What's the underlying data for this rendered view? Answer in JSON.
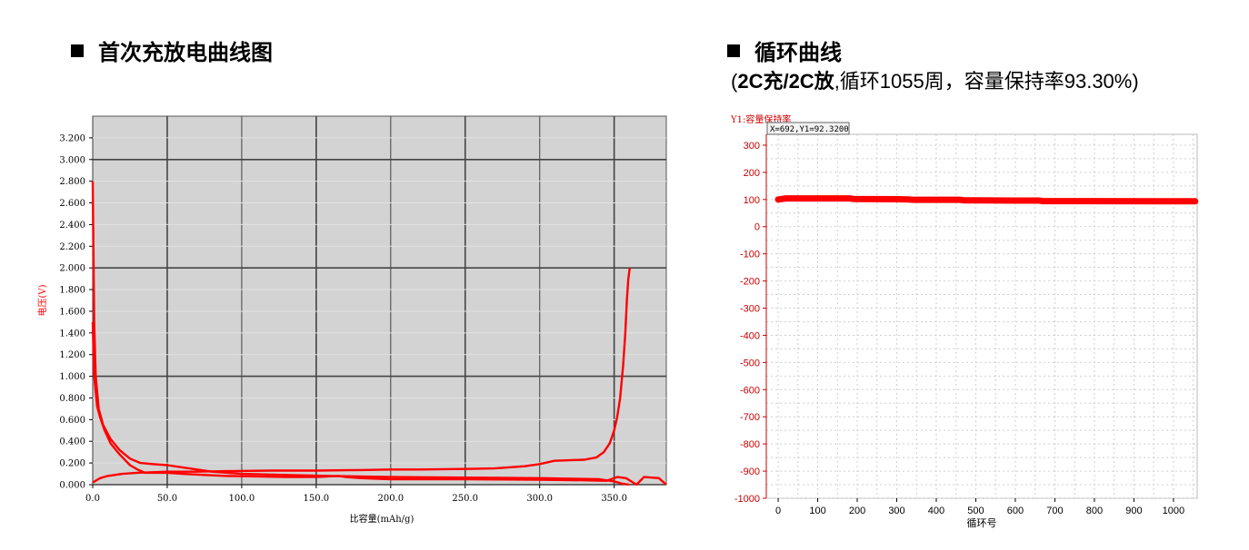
{
  "headings": {
    "left": "首次充放电曲线图",
    "right": "循环曲线",
    "subtitle_prefix": "(",
    "subtitle_bold": "2C充/2C放",
    "subtitle_rest": ",循环1055周，容量保持率93.30%)"
  },
  "colors": {
    "curve": "#ff0000",
    "plot_bg_left": "#d3d3d3",
    "axis_text_right": "#cc0000"
  },
  "chart_data": [
    {
      "type": "line",
      "xlabel": "比容量(mAh/g)",
      "ylabel": "电压(V)",
      "xlim": [
        0,
        385
      ],
      "ylim": [
        0,
        3.4
      ],
      "x_ticks": [
        "0.0",
        "50.0",
        "100.0",
        "150.0",
        "200.0",
        "250.0",
        "300.0",
        "350.0"
      ],
      "y_ticks": [
        "0.000",
        "0.200",
        "0.400",
        "0.600",
        "0.800",
        "1.000",
        "1.200",
        "1.400",
        "1.600",
        "1.800",
        "2.000",
        "2.200",
        "2.400",
        "2.600",
        "2.800",
        "3.000",
        "3.200"
      ],
      "grid": true,
      "series": [
        {
          "x": [
            0,
            1,
            2,
            4,
            7,
            12,
            18,
            25,
            32,
            40,
            50,
            60,
            70,
            80,
            100,
            130,
            160,
            200,
            250,
            300,
            340,
            350,
            355,
            360
          ],
          "y": [
            2.8,
            1.5,
            1.0,
            0.7,
            0.55,
            0.42,
            0.32,
            0.24,
            0.2,
            0.19,
            0.18,
            0.16,
            0.14,
            0.12,
            0.1,
            0.09,
            0.08,
            0.07,
            0.065,
            0.06,
            0.05,
            0.03,
            0.01,
            0.0
          ]
        },
        {
          "x": [
            0,
            1,
            3,
            5,
            8,
            12,
            18,
            25,
            30,
            35,
            50,
            60,
            75,
            90,
            130,
            150,
            165,
            170,
            180,
            200,
            250,
            300,
            330,
            345,
            352,
            358,
            365,
            370,
            380,
            385
          ],
          "y": [
            1.5,
            1.0,
            0.72,
            0.62,
            0.5,
            0.38,
            0.28,
            0.18,
            0.14,
            0.11,
            0.11,
            0.1,
            0.09,
            0.08,
            0.07,
            0.07,
            0.08,
            0.07,
            0.06,
            0.05,
            0.05,
            0.045,
            0.04,
            0.035,
            0.07,
            0.06,
            0.0,
            0.07,
            0.06,
            0.0
          ]
        },
        {
          "x": [
            0,
            5,
            10,
            20,
            30,
            50,
            70,
            90,
            120,
            150,
            180,
            200,
            220,
            250,
            270,
            290,
            300,
            310,
            320,
            330,
            338,
            343,
            347,
            350,
            352,
            354,
            356,
            357.5,
            358.5,
            359.5,
            360.5
          ],
          "y": [
            0.02,
            0.06,
            0.08,
            0.1,
            0.11,
            0.12,
            0.12,
            0.125,
            0.13,
            0.13,
            0.135,
            0.14,
            0.14,
            0.145,
            0.15,
            0.17,
            0.19,
            0.22,
            0.225,
            0.23,
            0.25,
            0.3,
            0.38,
            0.5,
            0.62,
            0.8,
            1.1,
            1.4,
            1.7,
            1.9,
            2.0
          ]
        }
      ]
    },
    {
      "type": "line",
      "title": "Y1:容量保持率",
      "annotation": "X=692,Y1=92.3200",
      "xlabel": "循环号",
      "xlim": [
        -30,
        1060
      ],
      "ylim": [
        -1000,
        340
      ],
      "x_ticks": [
        "0",
        "100",
        "200",
        "300",
        "400",
        "500",
        "600",
        "700",
        "800",
        "900",
        "1000"
      ],
      "y_ticks": [
        "300",
        "200",
        "100",
        "0",
        "-100",
        "-200",
        "-300",
        "-400",
        "-500",
        "-600",
        "-700",
        "-800",
        "-900",
        "-1000"
      ],
      "grid": true,
      "series": [
        {
          "x": [
            0,
            20,
            100,
            180,
            190,
            300,
            330,
            340,
            460,
            470,
            500,
            600,
            660,
            670,
            800,
            1000,
            1055
          ],
          "y": [
            100,
            104,
            104,
            104,
            102,
            101,
            100,
            99,
            99,
            97,
            97,
            96,
            96,
            94,
            94,
            93.5,
            93.3
          ]
        }
      ]
    }
  ]
}
